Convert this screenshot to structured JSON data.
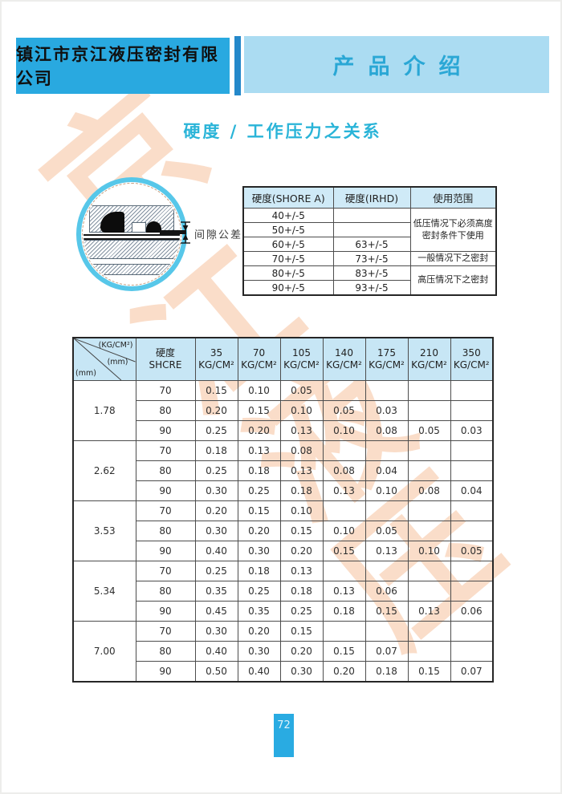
{
  "page": {
    "company": "镇江市京江液压密封有限公司",
    "section": "产品介绍",
    "title": "硬度 / 工作压力之关系",
    "page_number": "72",
    "watermark": [
      "京",
      "江",
      "液",
      "压"
    ]
  },
  "colors": {
    "accent_cyan": "#29A9E0",
    "light_blue_bar": "#ABDCF2",
    "divider_blue": "#2488CA",
    "title_cyan": "#2AB4D8",
    "table_header_blue": "#C7E6F5",
    "watermark_orange": "#F3AB78",
    "page_tab_cyan": "#29ABE2"
  },
  "diagram": {
    "label": "间隙公差"
  },
  "tables": {
    "hardness": {
      "headers": [
        "硬度(SHORE A)",
        "硬度(IRHD)",
        "使用范围"
      ],
      "rows": [
        {
          "shore": "40+/-5",
          "irhd": ""
        },
        {
          "shore": "50+/-5",
          "irhd": ""
        },
        {
          "shore": "60+/-5",
          "irhd": "63+/-5"
        },
        {
          "shore": "70+/-5",
          "irhd": "73+/-5"
        },
        {
          "shore": "80+/-5",
          "irhd": "83+/-5"
        },
        {
          "shore": "90+/-5",
          "irhd": "93+/-5"
        }
      ],
      "usage": [
        {
          "start": 0,
          "span": 3,
          "label": "低压情况下必须高度\n密封条件下使用"
        },
        {
          "start": 3,
          "span": 1,
          "label": "一般情况下之密封"
        },
        {
          "start": 4,
          "span": 2,
          "label": "高压情况下之密封"
        }
      ]
    },
    "pressure": {
      "corner": {
        "pressure_unit": "(KG/CM²)",
        "row_unit_mid": "(mm)",
        "row_unit_bottom": "(mm)"
      },
      "hardness_label": "硬度",
      "hardness_sub": "SHCRE",
      "columns": [
        "35",
        "70",
        "105",
        "140",
        "175",
        "210",
        "350"
      ],
      "unit": "KG/CM²",
      "groups": [
        {
          "size": "1.78",
          "rows": [
            {
              "hardness": "70",
              "values": [
                "0.15",
                "0.10",
                "0.05",
                "",
                "",
                "",
                ""
              ]
            },
            {
              "hardness": "80",
              "values": [
                "0.20",
                "0.15",
                "0.10",
                "0.05",
                "0.03",
                "",
                ""
              ]
            },
            {
              "hardness": "90",
              "values": [
                "0.25",
                "0.20",
                "0.13",
                "0.10",
                "0.08",
                "0.05",
                "0.03"
              ]
            }
          ]
        },
        {
          "size": "2.62",
          "rows": [
            {
              "hardness": "70",
              "values": [
                "0.18",
                "0.13",
                "0.08",
                "",
                "",
                "",
                ""
              ]
            },
            {
              "hardness": "80",
              "values": [
                "0.25",
                "0.18",
                "0.13",
                "0.08",
                "0.04",
                "",
                ""
              ]
            },
            {
              "hardness": "90",
              "values": [
                "0.30",
                "0.25",
                "0.18",
                "0.13",
                "0.10",
                "0.08",
                "0.04"
              ]
            }
          ]
        },
        {
          "size": "3.53",
          "rows": [
            {
              "hardness": "70",
              "values": [
                "0.20",
                "0.15",
                "0.10",
                "",
                "",
                "",
                ""
              ]
            },
            {
              "hardness": "80",
              "values": [
                "0.30",
                "0.20",
                "0.15",
                "0.10",
                "0.05",
                "",
                ""
              ]
            },
            {
              "hardness": "90",
              "values": [
                "0.40",
                "0.30",
                "0.20",
                "0.15",
                "0.13",
                "0.10",
                "0.05"
              ]
            }
          ]
        },
        {
          "size": "5.34",
          "rows": [
            {
              "hardness": "70",
              "values": [
                "0.25",
                "0.18",
                "0.13",
                "",
                "",
                "",
                ""
              ]
            },
            {
              "hardness": "80",
              "values": [
                "0.35",
                "0.25",
                "0.18",
                "0.13",
                "0.06",
                "",
                ""
              ]
            },
            {
              "hardness": "90",
              "values": [
                "0.45",
                "0.35",
                "0.25",
                "0.18",
                "0.15",
                "0.13",
                "0.06"
              ]
            }
          ]
        },
        {
          "size": "7.00",
          "rows": [
            {
              "hardness": "70",
              "values": [
                "0.30",
                "0.20",
                "0.15",
                "",
                "",
                "",
                ""
              ]
            },
            {
              "hardness": "80",
              "values": [
                "0.40",
                "0.30",
                "0.20",
                "0.15",
                "0.07",
                "",
                ""
              ]
            },
            {
              "hardness": "90",
              "values": [
                "0.50",
                "0.40",
                "0.30",
                "0.20",
                "0.18",
                "0.15",
                "0.07"
              ]
            }
          ]
        }
      ]
    }
  }
}
